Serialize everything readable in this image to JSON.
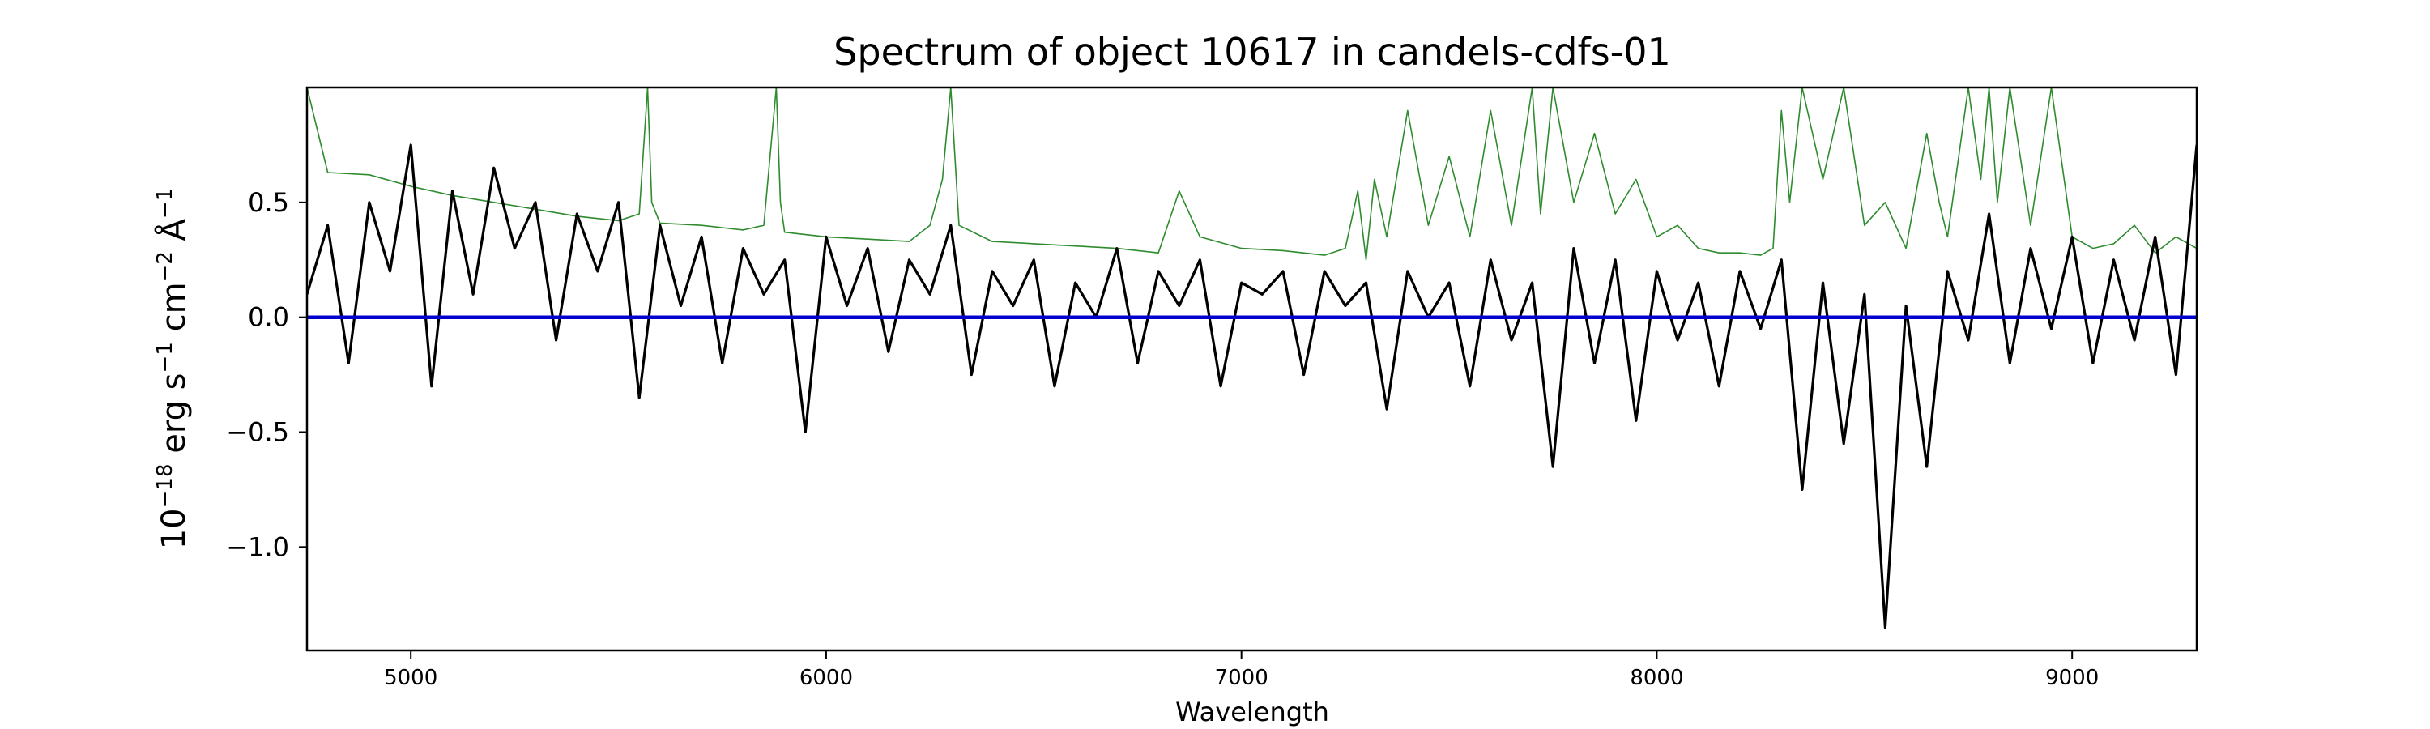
{
  "chart_data": {
    "type": "line",
    "title": "Spectrum of object 10617 in candels-cdfs-01",
    "xlabel": "Wavelength",
    "ylabel": {
      "base": "10",
      "exp1": "−18",
      "erg": " erg s",
      "exp2": "−1",
      "cm": " cm",
      "exp3": "−2",
      "ang": " Å",
      "exp4": "−1"
    },
    "xlim": [
      4750,
      9300
    ],
    "ylim": [
      -1.45,
      1.0
    ],
    "xticks": [
      5000,
      6000,
      7000,
      8000,
      9000
    ],
    "xtick_labels": [
      "5000",
      "6000",
      "7000",
      "8000",
      "9000"
    ],
    "yticks": [
      -1.0,
      -0.5,
      0.0,
      0.5
    ],
    "ytick_labels": [
      "−1.0",
      "−0.5",
      "0.0",
      "0.5"
    ],
    "grid": false,
    "legend": "none",
    "colors": {
      "flux": "#000000",
      "error": "#2e8b2e",
      "zero": "#0000cc",
      "axes": "#000000"
    },
    "series": [
      {
        "role": "flux",
        "x": [
          4750,
          4800,
          4850,
          4900,
          4950,
          5000,
          5050,
          5100,
          5150,
          5200,
          5250,
          5300,
          5350,
          5400,
          5450,
          5500,
          5550,
          5600,
          5650,
          5700,
          5750,
          5800,
          5850,
          5900,
          5950,
          6000,
          6050,
          6100,
          6150,
          6200,
          6250,
          6300,
          6350,
          6400,
          6450,
          6500,
          6550,
          6600,
          6650,
          6700,
          6750,
          6800,
          6850,
          6900,
          6950,
          7000,
          7050,
          7100,
          7150,
          7200,
          7250,
          7300,
          7350,
          7400,
          7450,
          7500,
          7550,
          7600,
          7650,
          7700,
          7750,
          7800,
          7850,
          7900,
          7950,
          8000,
          8050,
          8100,
          8150,
          8200,
          8250,
          8300,
          8350,
          8400,
          8450,
          8500,
          8550,
          8600,
          8650,
          8700,
          8750,
          8800,
          8850,
          8900,
          8950,
          9000,
          9050,
          9100,
          9150,
          9200,
          9250,
          9300
        ],
        "y": [
          0.1,
          0.4,
          -0.2,
          0.5,
          0.2,
          0.75,
          -0.3,
          0.55,
          0.1,
          0.65,
          0.3,
          0.5,
          -0.1,
          0.45,
          0.2,
          0.5,
          -0.35,
          0.4,
          0.05,
          0.35,
          -0.2,
          0.3,
          0.1,
          0.25,
          -0.5,
          0.35,
          0.05,
          0.3,
          -0.15,
          0.25,
          0.1,
          0.4,
          -0.25,
          0.2,
          0.05,
          0.25,
          -0.3,
          0.15,
          0.0,
          0.3,
          -0.2,
          0.2,
          0.05,
          0.25,
          -0.3,
          0.15,
          0.1,
          0.2,
          -0.25,
          0.2,
          0.05,
          0.15,
          -0.4,
          0.2,
          0.0,
          0.15,
          -0.3,
          0.25,
          -0.1,
          0.15,
          -0.65,
          0.3,
          -0.2,
          0.25,
          -0.45,
          0.2,
          -0.1,
          0.15,
          -0.3,
          0.2,
          -0.05,
          0.25,
          -0.75,
          0.15,
          -0.55,
          0.1,
          -1.35,
          0.05,
          -0.65,
          0.2,
          -0.1,
          0.45,
          -0.2,
          0.3,
          -0.05,
          0.35,
          -0.2,
          0.25,
          -0.1,
          0.35,
          -0.25,
          0.75
        ]
      },
      {
        "role": "error",
        "x": [
          4750,
          4800,
          4900,
          5000,
          5100,
          5200,
          5300,
          5400,
          5500,
          5550,
          5570,
          5580,
          5600,
          5700,
          5800,
          5850,
          5880,
          5890,
          5900,
          5950,
          6000,
          6100,
          6200,
          6250,
          6280,
          6300,
          6320,
          6400,
          6500,
          6600,
          6700,
          6800,
          6850,
          6900,
          7000,
          7100,
          7200,
          7250,
          7280,
          7300,
          7320,
          7350,
          7400,
          7450,
          7500,
          7550,
          7600,
          7650,
          7700,
          7720,
          7750,
          7800,
          7850,
          7900,
          7950,
          8000,
          8050,
          8100,
          8150,
          8200,
          8250,
          8280,
          8300,
          8320,
          8350,
          8400,
          8450,
          8500,
          8550,
          8600,
          8650,
          8680,
          8700,
          8750,
          8780,
          8800,
          8820,
          8850,
          8900,
          8950,
          9000,
          9050,
          9100,
          9150,
          9200,
          9250,
          9300
        ],
        "y": [
          1.0,
          0.63,
          0.62,
          0.57,
          0.53,
          0.5,
          0.47,
          0.44,
          0.42,
          0.45,
          1.0,
          0.5,
          0.41,
          0.4,
          0.38,
          0.4,
          1.0,
          0.5,
          0.37,
          0.36,
          0.35,
          0.34,
          0.33,
          0.4,
          0.6,
          1.0,
          0.4,
          0.33,
          0.32,
          0.31,
          0.3,
          0.28,
          0.55,
          0.35,
          0.3,
          0.29,
          0.27,
          0.3,
          0.55,
          0.25,
          0.6,
          0.35,
          0.9,
          0.4,
          0.7,
          0.35,
          0.9,
          0.4,
          1.0,
          0.45,
          1.0,
          0.5,
          0.8,
          0.45,
          0.6,
          0.35,
          0.4,
          0.3,
          0.28,
          0.28,
          0.27,
          0.3,
          0.9,
          0.5,
          1.0,
          0.6,
          1.0,
          0.4,
          0.5,
          0.3,
          0.8,
          0.5,
          0.35,
          1.0,
          0.6,
          1.0,
          0.5,
          1.0,
          0.4,
          1.0,
          0.35,
          0.3,
          0.32,
          0.4,
          0.28,
          0.35,
          0.3
        ]
      },
      {
        "role": "zero",
        "x": [
          4750,
          9300
        ],
        "y": [
          0.0,
          0.0
        ]
      }
    ]
  }
}
